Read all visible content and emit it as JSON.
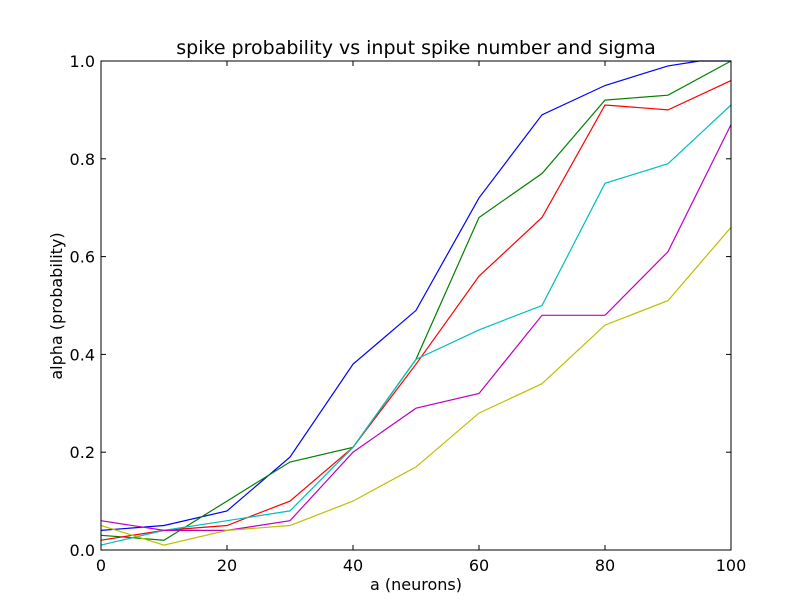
{
  "chart_data": {
    "type": "line",
    "title": "spike probability vs input spike number and sigma",
    "xlabel": "a (neurons)",
    "ylabel": "alpha (probability)",
    "xlim": [
      0,
      100
    ],
    "ylim": [
      0.0,
      1.0
    ],
    "x_ticks": [
      "0",
      "20",
      "40",
      "60",
      "80",
      "100"
    ],
    "y_ticks": [
      "0.0",
      "0.2",
      "0.4",
      "0.6",
      "0.8",
      "1.0"
    ],
    "grid": false,
    "legend": "none",
    "x": [
      0,
      10,
      20,
      30,
      40,
      50,
      60,
      70,
      80,
      90,
      100
    ],
    "series": [
      {
        "color": "#0000ff",
        "x": [
          0,
          10,
          20,
          30,
          40,
          50,
          60,
          70,
          80,
          90,
          95,
          100
        ],
        "values": [
          0.04,
          0.05,
          0.08,
          0.19,
          0.38,
          0.49,
          0.72,
          0.89,
          0.95,
          0.99,
          1.0,
          1.0
        ]
      },
      {
        "color": "#008000",
        "x": [
          0,
          10,
          20,
          30,
          40,
          50,
          60,
          70,
          80,
          90,
          100
        ],
        "values": [
          0.03,
          0.02,
          0.1,
          0.18,
          0.21,
          0.39,
          0.68,
          0.77,
          0.92,
          0.93,
          1.0
        ]
      },
      {
        "color": "#ff0000",
        "x": [
          0,
          10,
          20,
          30,
          40,
          50,
          60,
          70,
          80,
          90,
          100
        ],
        "values": [
          0.02,
          0.04,
          0.05,
          0.1,
          0.21,
          0.38,
          0.56,
          0.68,
          0.91,
          0.9,
          0.96
        ]
      },
      {
        "color": "#00bfbf",
        "x": [
          0,
          10,
          20,
          30,
          40,
          50,
          60,
          70,
          80,
          90,
          100
        ],
        "values": [
          0.01,
          0.04,
          0.06,
          0.08,
          0.21,
          0.39,
          0.45,
          0.5,
          0.75,
          0.79,
          0.91
        ]
      },
      {
        "color": "#bf00bf",
        "x": [
          0,
          10,
          20,
          30,
          40,
          50,
          60,
          70,
          80,
          90,
          100
        ],
        "values": [
          0.06,
          0.04,
          0.04,
          0.06,
          0.2,
          0.29,
          0.32,
          0.48,
          0.48,
          0.61,
          0.87
        ]
      },
      {
        "color": "#bfbf00",
        "x": [
          0,
          10,
          20,
          30,
          40,
          50,
          60,
          70,
          80,
          90,
          100
        ],
        "values": [
          0.05,
          0.01,
          0.04,
          0.05,
          0.1,
          0.17,
          0.28,
          0.34,
          0.46,
          0.51,
          0.66
        ]
      }
    ]
  }
}
